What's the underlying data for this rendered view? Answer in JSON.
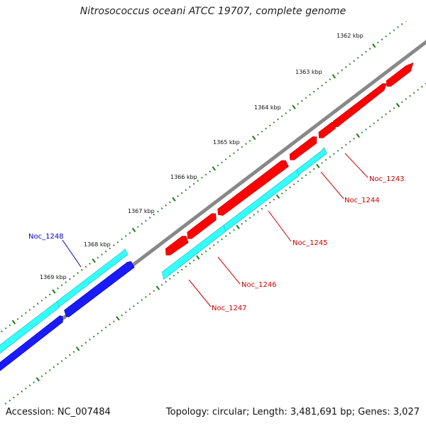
{
  "title": "Nitrosococcus oceani ATCC 19707, complete genome",
  "footer": {
    "accession": "Accession: NC_007484",
    "summary": "Topology: circular; Length: 3,481,691 bp; Genes: 3,027"
  },
  "colors": {
    "background": "#ffffff",
    "backbone": "#808080",
    "tick": "#1a7a1a",
    "forward_gene": "#ff0000",
    "reverse_gene": "#33ffff",
    "highlight_gene": "#1a1aff"
  },
  "kbp_labels": [
    {
      "text": "1362 kbp"
    },
    {
      "text": "1363 kbp"
    },
    {
      "text": "1364 kbp"
    },
    {
      "text": "1365 kbp"
    },
    {
      "text": "1366 kbp"
    },
    {
      "text": "1367 kbp"
    },
    {
      "text": "1368 kbp"
    },
    {
      "text": "1369 kbp"
    }
  ],
  "gene_labels": [
    {
      "text": "Noc_1243",
      "color": "#cc0000"
    },
    {
      "text": "Noc_1244",
      "color": "#cc0000"
    },
    {
      "text": "Noc_1245",
      "color": "#cc0000"
    },
    {
      "text": "Noc_1246",
      "color": "#cc0000"
    },
    {
      "text": "Noc_1247",
      "color": "#cc0000"
    },
    {
      "text": "Noc_1248",
      "color": "#0000cc"
    }
  ]
}
